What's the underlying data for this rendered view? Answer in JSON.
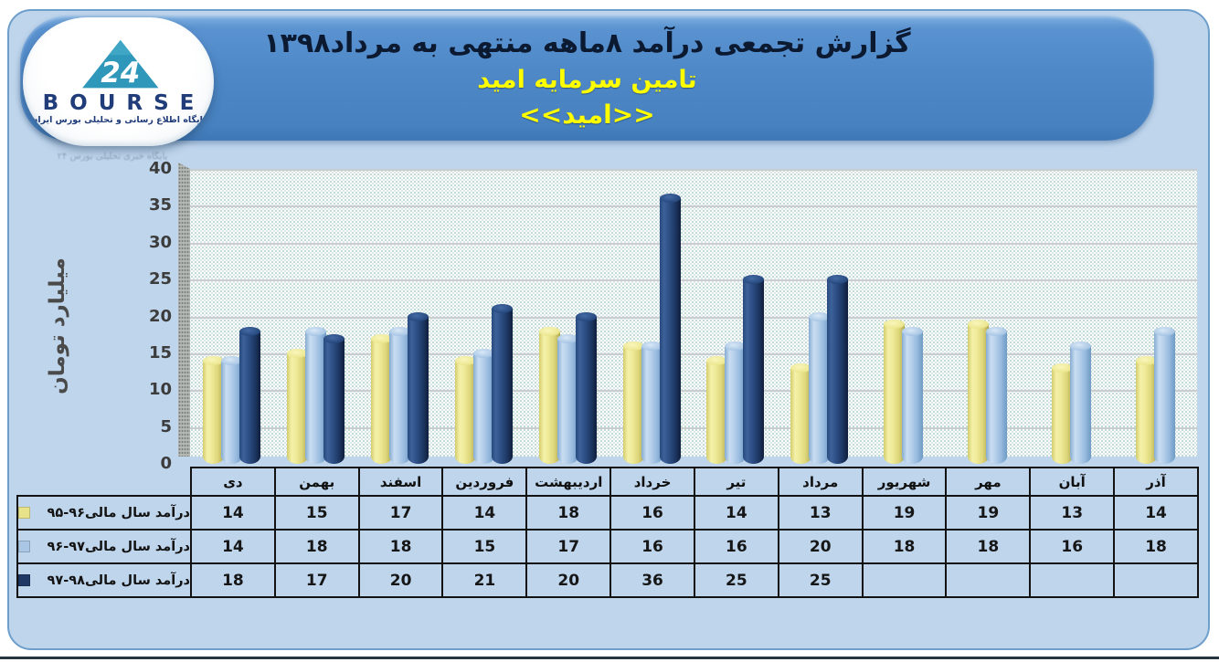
{
  "logo": {
    "brand": "BOURSE",
    "badge": "24",
    "tagline": "پایگاه اطلاع رسانی و تحلیلی بورس ایران"
  },
  "header": {
    "title": "گزارش تجمعی درآمد ۸ماهه منتهی به مرداد۱۳۹۸",
    "subtitle": "تامین سرمایه امید",
    "subtitle2": "<<امید>>",
    "banner_color": "#4e88c7",
    "title_color": "#0b1931",
    "subtitle_color": "#ffff00"
  },
  "watermark": "پایگاه خبری تحلیلی بورس ۲۴",
  "chart_data": {
    "type": "bar",
    "title": "گزارش تجمعی درآمد ۸ماهه منتهی به مرداد۱۳۹۸",
    "ylabel": "میلیارد تومان",
    "xlabel": "",
    "ylim": [
      0,
      40
    ],
    "yticks": [
      0,
      5,
      10,
      15,
      20,
      25,
      30,
      35,
      40
    ],
    "grid": true,
    "legend_position": "table-left",
    "categories": [
      "دی",
      "بهمن",
      "اسفند",
      "فروردین",
      "اردیبهشت",
      "خرداد",
      "تیر",
      "مرداد",
      "شهریور",
      "مهر",
      "آبان",
      "آذر"
    ],
    "series": [
      {
        "name": "درآمد سال مالی۹۶-۹۵",
        "color": "#e8e28a",
        "values": [
          14,
          15,
          17,
          14,
          18,
          16,
          14,
          13,
          19,
          19,
          13,
          14
        ]
      },
      {
        "name": "درآمد سال مالی۹۷-۹۶",
        "color": "#a9c7e5",
        "values": [
          14,
          18,
          18,
          15,
          17,
          16,
          16,
          20,
          18,
          18,
          16,
          18
        ]
      },
      {
        "name": "درآمد سال مالی۹۸-۹۷",
        "color": "#1f3864",
        "values": [
          18,
          17,
          20,
          21,
          20,
          36,
          25,
          25,
          null,
          null,
          null,
          null
        ]
      }
    ]
  }
}
